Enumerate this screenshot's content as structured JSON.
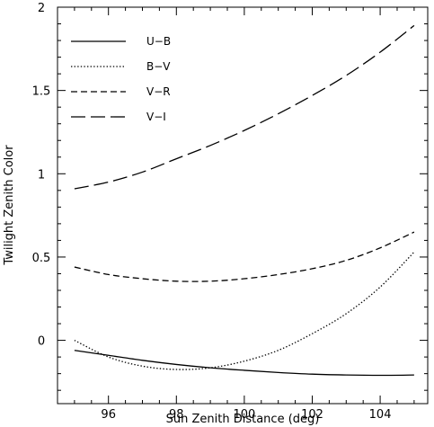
{
  "chart_data": {
    "type": "line",
    "title": "",
    "xlabel": "Sun Zenith Distance (deg)",
    "ylabel": "Twilight Zenith Color",
    "xlim": [
      94.5,
      105.4
    ],
    "ylim": [
      -0.38,
      2.0
    ],
    "xticks": [
      96,
      98,
      100,
      102,
      104
    ],
    "xtick_labels": [
      "96",
      "98",
      "100",
      "102",
      "104"
    ],
    "yticks": [
      0,
      0.5,
      1,
      1.5,
      2
    ],
    "ytick_labels": [
      "0",
      "0.5",
      "1",
      "1.5",
      "2"
    ],
    "grid": false,
    "legend_position": "top-left",
    "series": [
      {
        "name": "U−B",
        "dash": "solid",
        "x": [
          95,
          96,
          97,
          98,
          99,
          100,
          101,
          102,
          103,
          104,
          105
        ],
        "y": [
          -0.06,
          -0.09,
          -0.12,
          -0.145,
          -0.165,
          -0.18,
          -0.193,
          -0.203,
          -0.208,
          -0.21,
          -0.208
        ]
      },
      {
        "name": "B−V",
        "dash": "dotted",
        "x": [
          95,
          96,
          97,
          98,
          99,
          100,
          101,
          102,
          103,
          104,
          105
        ],
        "y": [
          0.0,
          -0.1,
          -0.155,
          -0.175,
          -0.165,
          -0.125,
          -0.06,
          0.04,
          0.16,
          0.32,
          0.53
        ]
      },
      {
        "name": "V−R",
        "dash": "dashed",
        "x": [
          95,
          96,
          97,
          98,
          99,
          100,
          101,
          102,
          103,
          104,
          105
        ],
        "y": [
          0.44,
          0.395,
          0.37,
          0.355,
          0.355,
          0.37,
          0.395,
          0.43,
          0.48,
          0.555,
          0.65
        ]
      },
      {
        "name": "V−I",
        "dash": "longdash",
        "x": [
          95,
          96,
          97,
          98,
          99,
          100,
          101,
          102,
          103,
          104,
          105
        ],
        "y": [
          0.91,
          0.95,
          1.01,
          1.09,
          1.17,
          1.26,
          1.36,
          1.47,
          1.59,
          1.73,
          1.89
        ]
      }
    ]
  }
}
